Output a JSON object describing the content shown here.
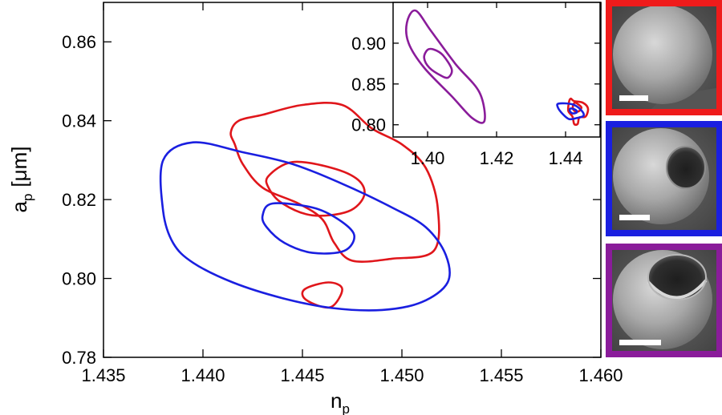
{
  "chart_data": [
    {
      "type": "contour",
      "xlabel_main": "n",
      "xlabel_sub": "p",
      "ylabel_main": "a",
      "ylabel_sub": "p",
      "ylabel_unit": "[μm]",
      "xlim": [
        1.435,
        1.46
      ],
      "ylim": [
        0.78,
        0.87
      ],
      "xticks": [
        "1.435",
        "1.440",
        "1.445",
        "1.450",
        "1.455",
        "1.460"
      ],
      "yticks": [
        "0.78",
        "0.80",
        "0.82",
        "0.84",
        "0.86"
      ],
      "series": [
        {
          "color": "#e0161b",
          "contours": [
            [
              [
                1.443,
                0.8415
              ],
              [
                1.445,
                0.844
              ],
              [
                1.447,
                0.844
              ],
              [
                1.4485,
                0.838
              ],
              [
                1.45,
                0.834
              ],
              [
                1.4512,
                0.828
              ],
              [
                1.4518,
                0.818
              ],
              [
                1.4516,
                0.807
              ],
              [
                1.4495,
                0.805
              ],
              [
                1.4475,
                0.8045
              ],
              [
                1.4466,
                0.809
              ],
              [
                1.446,
                0.815
              ],
              [
                1.4448,
                0.819
              ],
              [
                1.443,
                0.823
              ],
              [
                1.442,
                0.829
              ],
              [
                1.4416,
                0.834
              ],
              [
                1.4414,
                0.837
              ],
              [
                1.4418,
                0.84
              ],
              [
                1.443,
                0.8415
              ]
            ],
            [
              [
                1.4445,
                0.8295
              ],
              [
                1.4465,
                0.828
              ],
              [
                1.4478,
                0.825
              ],
              [
                1.4481,
                0.821
              ],
              [
                1.4473,
                0.817
              ],
              [
                1.4455,
                0.816
              ],
              [
                1.444,
                0.819
              ],
              [
                1.4433,
                0.823
              ],
              [
                1.4433,
                0.826
              ],
              [
                1.4445,
                0.8295
              ]
            ],
            [
              [
                1.4463,
                0.799
              ],
              [
                1.447,
                0.7973
              ],
              [
                1.4464,
                0.7927
              ],
              [
                1.4452,
                0.7945
              ],
              [
                1.4451,
                0.7972
              ],
              [
                1.4463,
                0.799
              ]
            ]
          ]
        },
        {
          "color": "#1a1fe0",
          "contours": [
            [
              [
                1.438,
                0.83
              ],
              [
                1.4395,
                0.8345
              ],
              [
                1.442,
                0.832
              ],
              [
                1.4445,
                0.829
              ],
              [
                1.447,
                0.824
              ],
              [
                1.4495,
                0.818
              ],
              [
                1.4512,
                0.813
              ],
              [
                1.4522,
                0.806
              ],
              [
                1.4523,
                0.799
              ],
              [
                1.451,
                0.794
              ],
              [
                1.449,
                0.792
              ],
              [
                1.4465,
                0.7925
              ],
              [
                1.444,
                0.795
              ],
              [
                1.4415,
                0.799
              ],
              [
                1.4395,
                0.804
              ],
              [
                1.4385,
                0.809
              ],
              [
                1.438,
                0.817
              ],
              [
                1.438,
                0.83
              ]
            ],
            [
              [
                1.4435,
                0.819
              ],
              [
                1.4455,
                0.818
              ],
              [
                1.4468,
                0.815
              ],
              [
                1.4476,
                0.811
              ],
              [
                1.4471,
                0.807
              ],
              [
                1.4455,
                0.8065
              ],
              [
                1.4441,
                0.809
              ],
              [
                1.4432,
                0.813
              ],
              [
                1.443,
                0.816
              ],
              [
                1.4435,
                0.819
              ]
            ]
          ]
        }
      ]
    },
    {
      "type": "contour",
      "xlim": [
        1.39,
        1.45
      ],
      "ylim": [
        0.785,
        0.95
      ],
      "xticks": [
        "1.40",
        "1.42",
        "1.44"
      ],
      "yticks": [
        "0.80",
        "0.85",
        "0.90"
      ],
      "series": [
        {
          "color": "#8a1c9a",
          "contours": [
            [
              [
                1.3965,
                0.94
              ],
              [
                1.401,
                0.915
              ],
              [
                1.408,
                0.875
              ],
              [
                1.415,
                0.84
              ],
              [
                1.4165,
                0.805
              ],
              [
                1.413,
                0.808
              ],
              [
                1.407,
                0.835
              ],
              [
                1.399,
                0.87
              ],
              [
                1.3945,
                0.9
              ],
              [
                1.394,
                0.925
              ],
              [
                1.3965,
                0.94
              ]
            ],
            [
              [
                1.402,
                0.892
              ],
              [
                1.4045,
                0.885
              ],
              [
                1.407,
                0.868
              ],
              [
                1.406,
                0.858
              ],
              [
                1.404,
                0.86
              ],
              [
                1.4005,
                0.87
              ],
              [
                1.399,
                0.882
              ],
              [
                1.4,
                0.892
              ],
              [
                1.402,
                0.892
              ]
            ]
          ]
        },
        {
          "color": "#e0161b",
          "contours": [
            [
              [
                1.4415,
                0.832
              ],
              [
                1.4425,
                0.829
              ],
              [
                1.445,
                0.827
              ],
              [
                1.4465,
                0.82
              ],
              [
                1.4458,
                0.81
              ],
              [
                1.444,
                0.809
              ],
              [
                1.4435,
                0.801
              ],
              [
                1.4425,
                0.801
              ],
              [
                1.442,
                0.81
              ],
              [
                1.4408,
                0.817
              ],
              [
                1.441,
                0.828
              ],
              [
                1.4415,
                0.832
              ]
            ],
            [
              [
                1.4428,
                0.827
              ],
              [
                1.444,
                0.824
              ],
              [
                1.4446,
                0.821
              ],
              [
                1.444,
                0.817
              ],
              [
                1.443,
                0.816
              ],
              [
                1.4422,
                0.819
              ],
              [
                1.4422,
                0.824
              ],
              [
                1.4428,
                0.827
              ]
            ]
          ]
        },
        {
          "color": "#1a1fe0",
          "contours": [
            [
              [
                1.438,
                0.826
              ],
              [
                1.442,
                0.825
              ],
              [
                1.4445,
                0.818
              ],
              [
                1.4452,
                0.811
              ],
              [
                1.443,
                0.808
              ],
              [
                1.441,
                0.807
              ],
              [
                1.4392,
                0.813
              ],
              [
                1.4378,
                0.821
              ],
              [
                1.438,
                0.826
              ]
            ],
            [
              [
                1.4415,
                0.82
              ],
              [
                1.443,
                0.818
              ],
              [
                1.4432,
                0.815
              ],
              [
                1.442,
                0.814
              ],
              [
                1.4412,
                0.817
              ],
              [
                1.4415,
                0.82
              ]
            ]
          ]
        }
      ]
    }
  ],
  "images": [
    {
      "name": "red-sphere-image",
      "frame_color": "#ef1b1b",
      "type": "whole"
    },
    {
      "name": "blue-sphere-image",
      "frame_color": "#1a1fe0",
      "type": "small-dimple"
    },
    {
      "name": "purple-sphere-image",
      "frame_color": "#8a1c9a",
      "type": "large-dimple"
    }
  ]
}
